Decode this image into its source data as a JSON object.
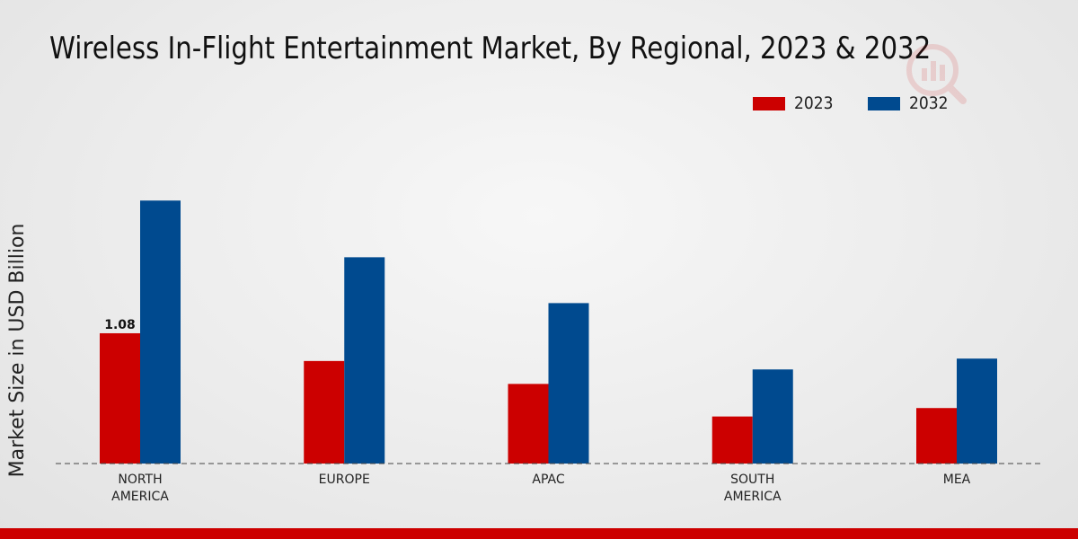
{
  "chart_data": {
    "type": "bar",
    "title": "Wireless In-Flight Entertainment Market, By Regional, 2023 & 2032",
    "ylabel": "Market Size in USD Billion",
    "xlabel": "",
    "categories": [
      "NORTH\nAMERICA",
      "EUROPE",
      "APAC",
      "SOUTH\nAMERICA",
      "MEA"
    ],
    "series": [
      {
        "name": "2023",
        "color": "#cc0000",
        "values": [
          1.08,
          0.85,
          0.66,
          0.39,
          0.46
        ]
      },
      {
        "name": "2032",
        "color": "#004a8f",
        "values": [
          2.18,
          1.71,
          1.33,
          0.78,
          0.87
        ]
      }
    ],
    "ylim": [
      0,
      2.8
    ],
    "data_labels": [
      {
        "series": "2023",
        "category_index": 0,
        "text": "1.08"
      }
    ],
    "legend": "top-right",
    "grid": false
  }
}
